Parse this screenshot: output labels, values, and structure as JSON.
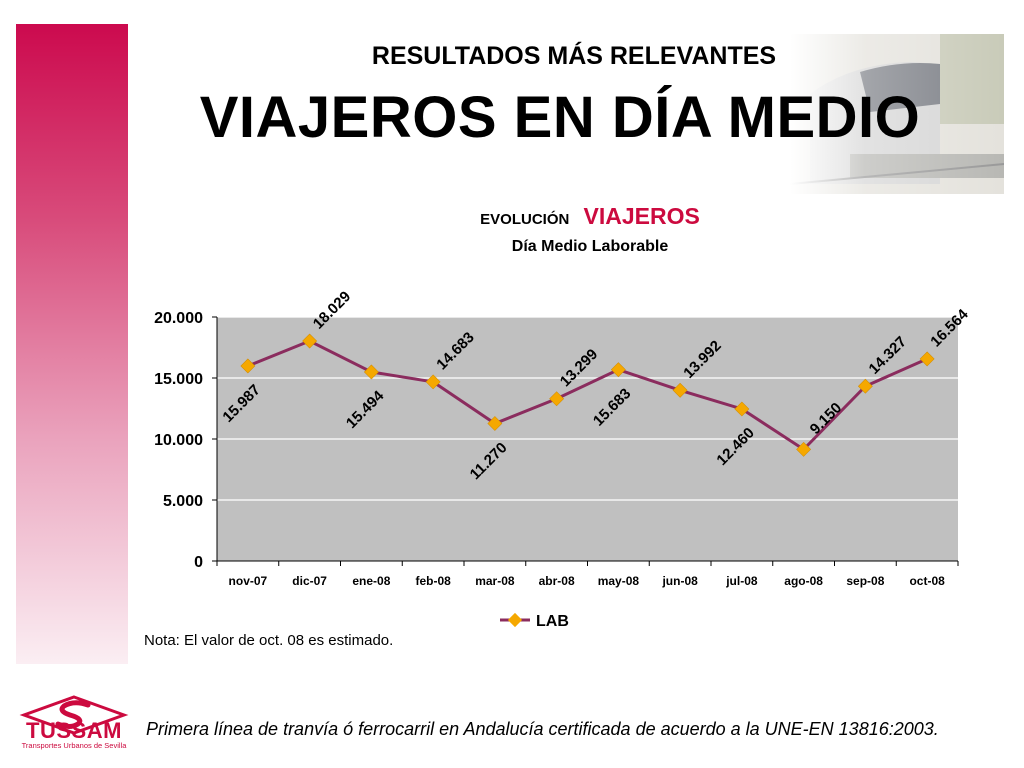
{
  "slide": {
    "subtitle": "RESULTADOS MÁS RELEVANTES",
    "title": "VIAJEROS EN DÍA MEDIO",
    "note": "Nota: El valor de oct. 08 es estimado.",
    "footer": "Primera línea de tranvía ó ferrocarril en Andalucía certificada de acuerdo a la UNE-EN 13816:2003.",
    "logo": {
      "name": "TUSSAM",
      "tagline": "Transportes Urbanos de Sevilla"
    },
    "colors": {
      "accent": "#cc0a3f",
      "line": "#8b2c5e",
      "marker": "#f5a800",
      "plot_bg": "#c0c0c0"
    }
  },
  "chart_data": {
    "type": "line",
    "title_prefix": "EVOLUCIÓN",
    "title_highlight": "VIAJEROS",
    "subtitle": "Día Medio Laborable",
    "categories": [
      "nov-07",
      "dic-07",
      "ene-08",
      "feb-08",
      "mar-08",
      "abr-08",
      "may-08",
      "jun-08",
      "jul-08",
      "ago-08",
      "sep-08",
      "oct-08"
    ],
    "series": [
      {
        "name": "LAB",
        "values": [
          15987,
          18029,
          15494,
          14683,
          11270,
          13299,
          15683,
          13992,
          12460,
          9150,
          14327,
          16564
        ],
        "labels": [
          "15.987",
          "18.029",
          "15.494",
          "14.683",
          "11.270",
          "13.299",
          "15.683",
          "13.992",
          "12.460",
          "9.150",
          "14.327",
          "16.564"
        ]
      }
    ],
    "ylim": [
      0,
      20000
    ],
    "yticks": [
      0,
      5000,
      10000,
      15000,
      20000
    ],
    "ytick_labels": [
      "0",
      "5.000",
      "10.000",
      "15.000",
      "20.000"
    ],
    "grid": true,
    "legend": "bottom"
  }
}
